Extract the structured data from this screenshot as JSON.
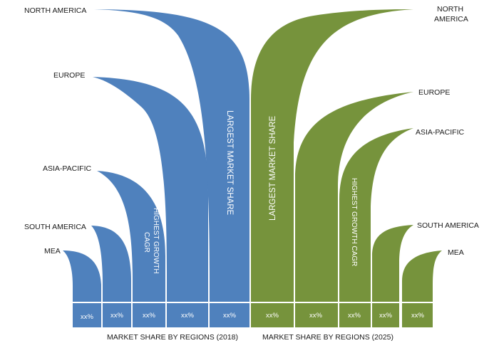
{
  "colors": {
    "left": "#4f81bd",
    "right": "#76933c",
    "divider": "#ffffff",
    "text": "#1a1a1a"
  },
  "left": {
    "caption": "MARKET SHARE BY REGIONS (2018)",
    "regions": [
      "NORTH AMERICA",
      "EUROPE",
      "ASIA-PACIFIC",
      "SOUTH AMERICA",
      "MEA"
    ],
    "largest_label": "LARGEST MARKET SHARE",
    "growth_label_line1": "HIGHEST GROWTH",
    "growth_label_line2": "CAGR",
    "percent_values": [
      "xx%",
      "xx%",
      "xx%",
      "xx%",
      "xx%"
    ]
  },
  "right": {
    "caption": "MARKET SHARE BY REGIONS (2025)",
    "regions": [
      "NORTH AMERICA",
      "EUROPE",
      "ASIA-PACIFIC",
      "SOUTH AMERICA",
      "MEA"
    ],
    "largest_label": "LARGEST MARKET SHARE",
    "growth_label": "HIGHEST GROWTH CAGR",
    "percent_values": [
      "xx%",
      "xx%",
      "xx%",
      "xx%",
      "xx%"
    ]
  }
}
